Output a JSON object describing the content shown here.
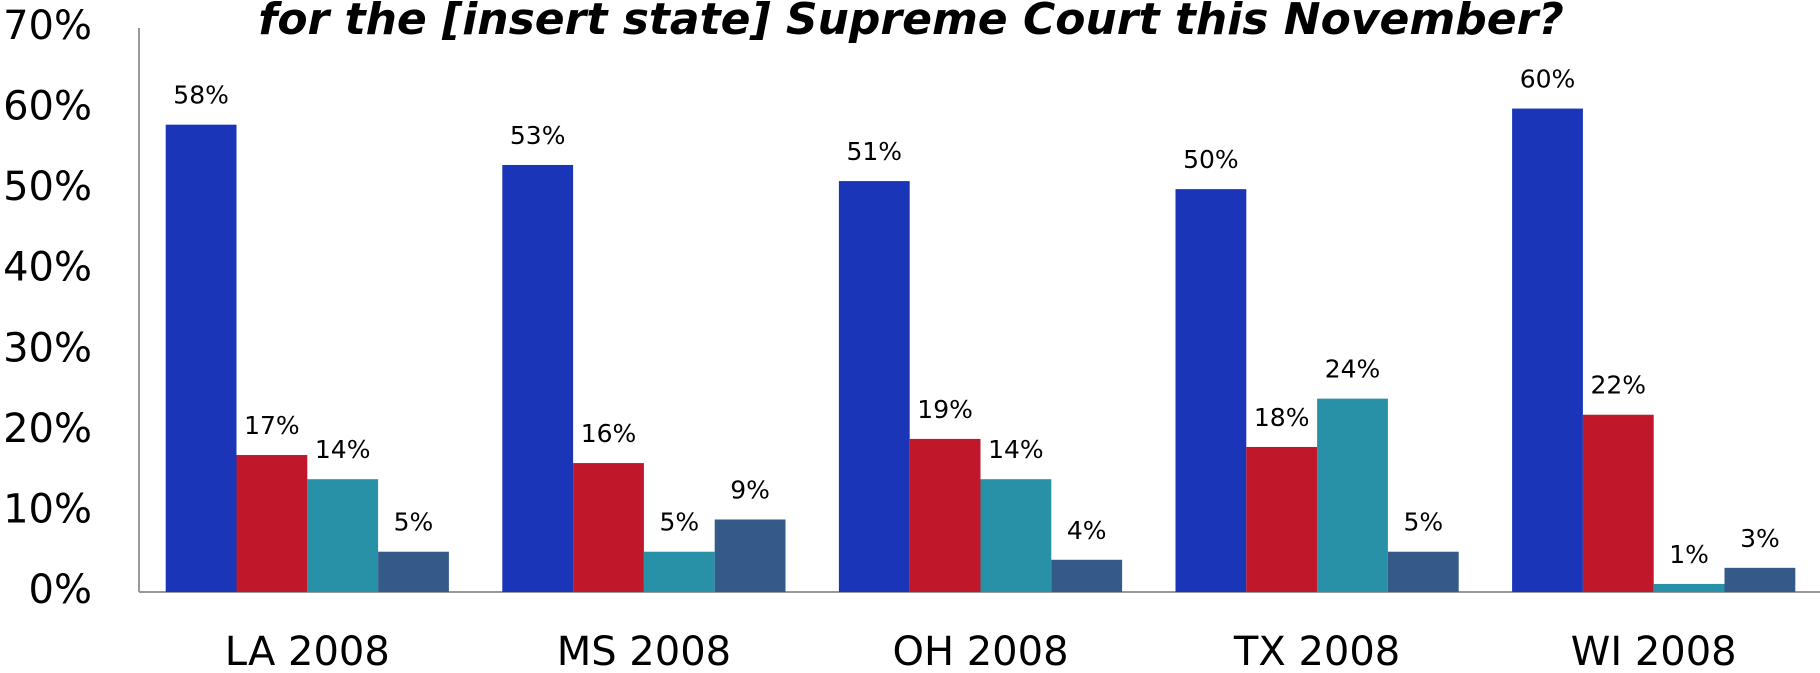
{
  "chart_data": {
    "type": "bar",
    "title": "for the [insert state] Supreme Court this November?",
    "categories": [
      "LA 2008",
      "MS 2008",
      "OH 2008",
      "TX 2008",
      "WI 2008"
    ],
    "series": [
      {
        "color": "#1a35b8",
        "values": [
          58,
          53,
          51,
          50,
          60
        ],
        "value_labels": [
          "58%",
          "53%",
          "51%",
          "50%",
          "60%"
        ]
      },
      {
        "color": "#c0182a",
        "values": [
          17,
          16,
          19,
          18,
          22
        ],
        "value_labels": [
          "17%",
          "16%",
          "19%",
          "18%",
          "22%"
        ]
      },
      {
        "color": "#2891a8",
        "values": [
          14,
          5,
          14,
          24,
          1
        ],
        "value_labels": [
          "14%",
          "5%",
          "14%",
          "24%",
          "1%"
        ]
      },
      {
        "color": "#345a8a",
        "values": [
          5,
          9,
          4,
          5,
          3
        ],
        "value_labels": [
          "5%",
          "9%",
          "4%",
          "5%",
          "3%"
        ]
      }
    ],
    "ylim": [
      0,
      70
    ],
    "yticks": [
      {
        "value": 0,
        "label": "0%"
      },
      {
        "value": 10,
        "label": "10%"
      },
      {
        "value": 20,
        "label": "20%"
      },
      {
        "value": 30,
        "label": "30%"
      },
      {
        "value": 40,
        "label": "40%"
      },
      {
        "value": 50,
        "label": "50%"
      },
      {
        "value": 60,
        "label": "60%"
      },
      {
        "value": 70,
        "label": "70%"
      }
    ],
    "grid": false
  }
}
